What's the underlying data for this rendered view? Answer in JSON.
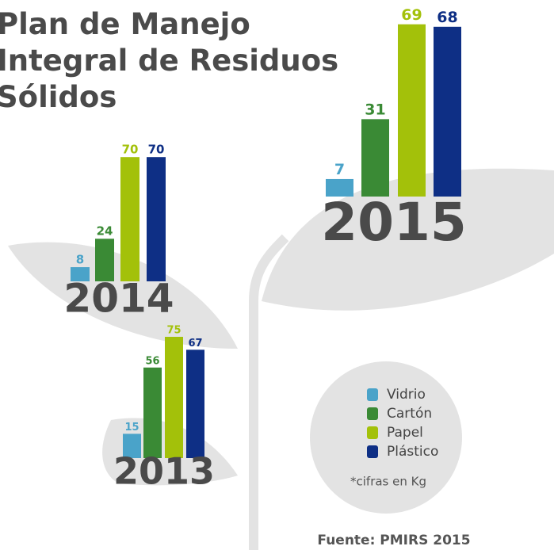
{
  "title": "Plan de Manejo Integral de Residuos Sólidos",
  "legend": [
    {
      "name": "Vidrio",
      "color": "#4aa3c9"
    },
    {
      "name": "Cartón",
      "color": "#3a8a35"
    },
    {
      "name": "Papel",
      "color": "#a3c10a"
    },
    {
      "name": "Plástico",
      "color": "#0e2f85"
    }
  ],
  "note": "*cifras en Kg",
  "source": "Fuente: PMIRS 2015",
  "chart_data": [
    {
      "type": "bar",
      "title": "2015",
      "values": [
        7,
        31,
        69,
        68
      ]
    },
    {
      "type": "bar",
      "title": "2014",
      "values": [
        8,
        24,
        70,
        70
      ]
    },
    {
      "type": "bar",
      "title": "2013",
      "values": [
        15,
        56,
        75,
        67
      ]
    }
  ]
}
